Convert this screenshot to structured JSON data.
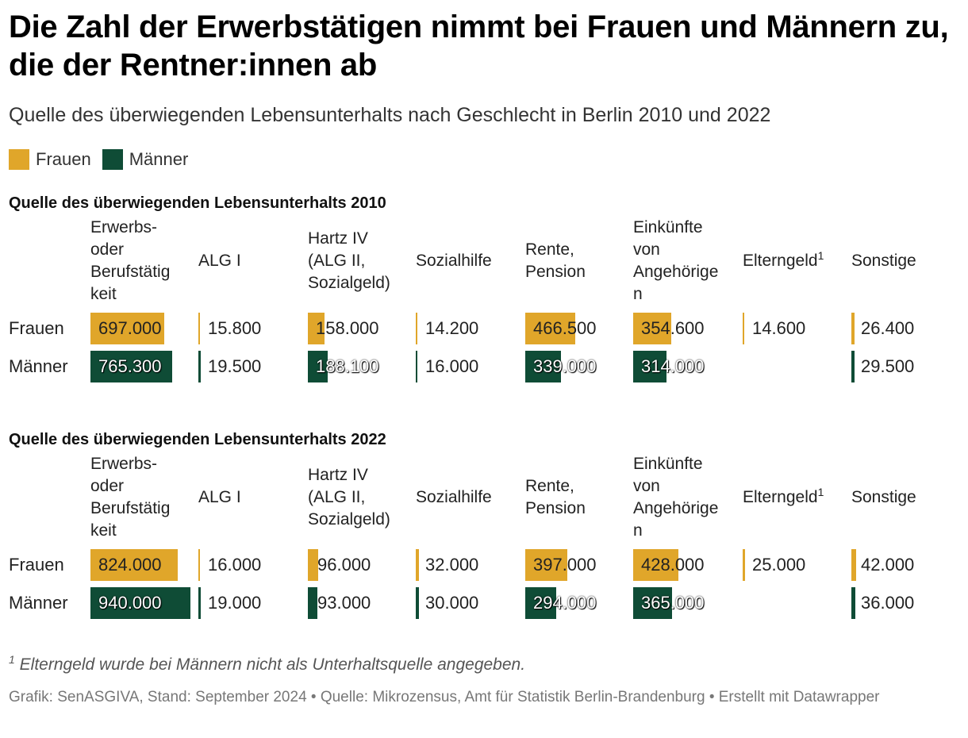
{
  "title": "Die Zahl der Erwerbstätigen nimmt bei Frauen und Männern zu, die der Rentner:innen ab",
  "subtitle": "Quelle des überwiegenden Lebensunterhalts nach Geschlecht in Berlin 2010 und 2022",
  "legend": [
    {
      "label": "Frauen",
      "color": "#e0a62a"
    },
    {
      "label": "Männer",
      "color": "#0f4c36"
    }
  ],
  "colors": {
    "frauen": "#e0a62a",
    "maenner": "#0f4c36"
  },
  "chart_data": {
    "type": "table",
    "title": "Die Zahl der Erwerbstätigen nimmt bei Frauen und Männern zu, die der Rentner:innen ab",
    "columns": [
      "Erwerbs-\noder\nBerufstätig\nkeit",
      "ALG I",
      "Hartz IV\n(ALG II,\nSozialgeld)",
      "Sozialhilfe",
      "Rente,\nPension",
      "Einkünfte\nvon\nAngehörige\nn",
      "Elterngeld",
      "Sonstige"
    ],
    "column_superscripts": [
      "",
      "",
      "",
      "",
      "",
      "",
      "1",
      ""
    ],
    "max_value": 940000,
    "tables": [
      {
        "title": "Quelle des überwiegenden Lebensunterhalts 2010",
        "rows": [
          {
            "label": "Frauen",
            "series": "frauen",
            "values": [
              697000,
              15800,
              158000,
              14200,
              466500,
              354600,
              14600,
              26400
            ],
            "display": [
              "697.000",
              "15.800",
              "158.000",
              "14.200",
              "466.500",
              "354.600",
              "14.600",
              "26.400"
            ]
          },
          {
            "label": "Männer",
            "series": "maenner",
            "values": [
              765300,
              19500,
              188100,
              16000,
              339000,
              314000,
              null,
              29500
            ],
            "display": [
              "765.300",
              "19.500",
              "188.100",
              "16.000",
              "339.000",
              "314.000",
              "",
              "29.500"
            ]
          }
        ]
      },
      {
        "title": "Quelle des überwiegenden Lebensunterhalts 2022",
        "rows": [
          {
            "label": "Frauen",
            "series": "frauen",
            "values": [
              824000,
              16000,
              96000,
              32000,
              397000,
              428000,
              25000,
              42000
            ],
            "display": [
              "824.000",
              "16.000",
              "96.000",
              "32.000",
              "397.000",
              "428.000",
              "25.000",
              "42.000"
            ]
          },
          {
            "label": "Männer",
            "series": "maenner",
            "values": [
              940000,
              19000,
              93000,
              30000,
              294000,
              365000,
              null,
              36000
            ],
            "display": [
              "940.000",
              "19.000",
              "93.000",
              "30.000",
              "294.000",
              "365.000",
              "",
              "36.000"
            ]
          }
        ]
      }
    ]
  },
  "footnote": {
    "marker": "1",
    "text": "Elterngeld wurde bei Männern nicht als Unterhaltsquelle angegeben."
  },
  "credit": "Grafik: SenASGIVA, Stand: September 2024 • Quelle: Mikrozensus, Amt für Statistik Berlin-Brandenburg • Erstellt mit Datawrapper"
}
